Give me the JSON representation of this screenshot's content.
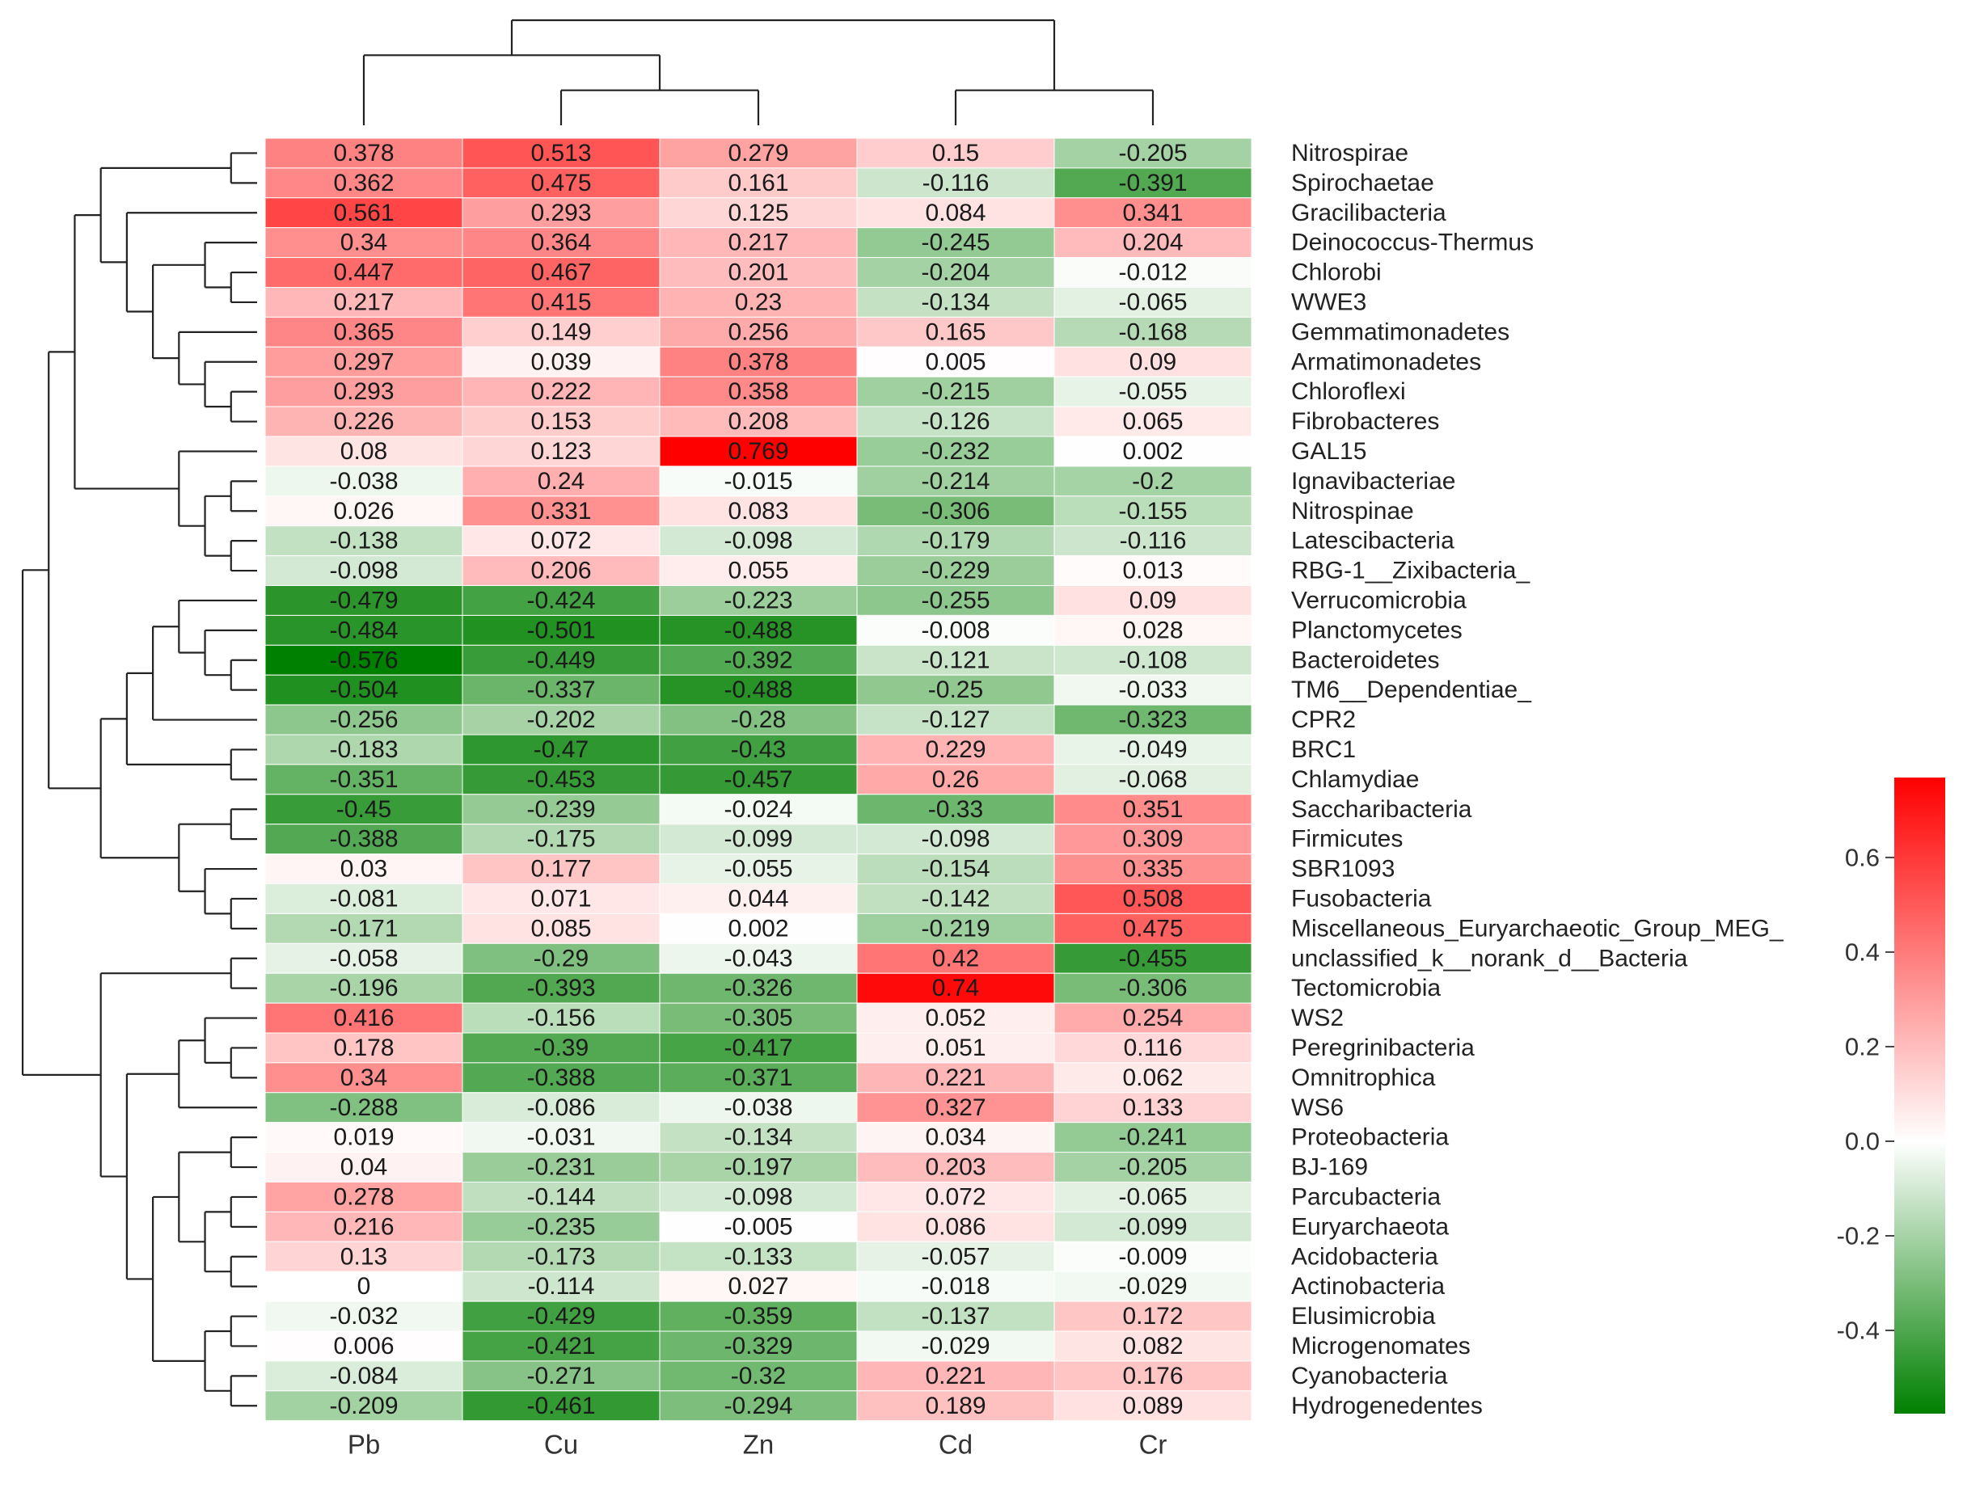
{
  "chart_data": {
    "type": "heatmap",
    "columns": [
      "Pb",
      "Cu",
      "Zn",
      "Cd",
      "Cr"
    ],
    "rows": [
      "Nitrospirae",
      "Spirochaetae",
      "Gracilibacteria",
      "Deinococcus-Thermus",
      "Chlorobi",
      "WWE3",
      "Gemmatimonadetes",
      "Armatimonadetes",
      "Chloroflexi",
      "Fibrobacteres",
      "GAL15",
      "Ignavibacteriae",
      "Nitrospinae",
      "Latescibacteria",
      "RBG-1__Zixibacteria_",
      "Verrucomicrobia",
      "Planctomycetes",
      "Bacteroidetes",
      "TM6__Dependentiae_",
      "CPR2",
      "BRC1",
      "Chlamydiae",
      "Saccharibacteria",
      "Firmicutes",
      "SBR1093",
      "Fusobacteria",
      "Miscellaneous_Euryarchaeotic_Group_MEG_",
      "unclassified_k__norank_d__Bacteria",
      "Tectomicrobia",
      "WS2",
      "Peregrinibacteria",
      "Omnitrophica",
      "WS6",
      "Proteobacteria",
      "BJ-169",
      "Parcubacteria",
      "Euryarchaeota",
      "Acidobacteria",
      "Actinobacteria",
      "Elusimicrobia",
      "Microgenomates",
      "Cyanobacteria",
      "Hydrogenedentes"
    ],
    "values": [
      [
        "0.378",
        "0.513",
        "0.279",
        "0.15",
        "-0.205"
      ],
      [
        "0.362",
        "0.475",
        "0.161",
        "-0.116",
        "-0.391"
      ],
      [
        "0.561",
        "0.293",
        "0.125",
        "0.084",
        "0.341"
      ],
      [
        "0.34",
        "0.364",
        "0.217",
        "-0.245",
        "0.204"
      ],
      [
        "0.447",
        "0.467",
        "0.201",
        "-0.204",
        "-0.012"
      ],
      [
        "0.217",
        "0.415",
        "0.23",
        "-0.134",
        "-0.065"
      ],
      [
        "0.365",
        "0.149",
        "0.256",
        "0.165",
        "-0.168"
      ],
      [
        "0.297",
        "0.039",
        "0.378",
        "0.005",
        "0.09"
      ],
      [
        "0.293",
        "0.222",
        "0.358",
        "-0.215",
        "-0.055"
      ],
      [
        "0.226",
        "0.153",
        "0.208",
        "-0.126",
        "0.065"
      ],
      [
        "0.08",
        "0.123",
        "0.769",
        "-0.232",
        "0.002"
      ],
      [
        "-0.038",
        "0.24",
        "-0.015",
        "-0.214",
        "-0.2"
      ],
      [
        "0.026",
        "0.331",
        "0.083",
        "-0.306",
        "-0.155"
      ],
      [
        "-0.138",
        "0.072",
        "-0.098",
        "-0.179",
        "-0.116"
      ],
      [
        "-0.098",
        "0.206",
        "0.055",
        "-0.229",
        "0.013"
      ],
      [
        "-0.479",
        "-0.424",
        "-0.223",
        "-0.255",
        "0.09"
      ],
      [
        "-0.484",
        "-0.501",
        "-0.488",
        "-0.008",
        "0.028"
      ],
      [
        "-0.576",
        "-0.449",
        "-0.392",
        "-0.121",
        "-0.108"
      ],
      [
        "-0.504",
        "-0.337",
        "-0.488",
        "-0.25",
        "-0.033"
      ],
      [
        "-0.256",
        "-0.202",
        "-0.28",
        "-0.127",
        "-0.323"
      ],
      [
        "-0.183",
        "-0.47",
        "-0.43",
        "0.229",
        "-0.049"
      ],
      [
        "-0.351",
        "-0.453",
        "-0.457",
        "0.26",
        "-0.068"
      ],
      [
        "-0.45",
        "-0.239",
        "-0.024",
        "-0.33",
        "0.351"
      ],
      [
        "-0.388",
        "-0.175",
        "-0.099",
        "-0.098",
        "0.309"
      ],
      [
        "0.03",
        "0.177",
        "-0.055",
        "-0.154",
        "0.335"
      ],
      [
        "-0.081",
        "0.071",
        "0.044",
        "-0.142",
        "0.508"
      ],
      [
        "-0.171",
        "0.085",
        "0.002",
        "-0.219",
        "0.475"
      ],
      [
        "-0.058",
        "-0.29",
        "-0.043",
        "0.42",
        "-0.455"
      ],
      [
        "-0.196",
        "-0.393",
        "-0.326",
        "0.74",
        "-0.306"
      ],
      [
        "0.416",
        "-0.156",
        "-0.305",
        "0.052",
        "0.254"
      ],
      [
        "0.178",
        "-0.39",
        "-0.417",
        "0.051",
        "0.116"
      ],
      [
        "0.34",
        "-0.388",
        "-0.371",
        "0.221",
        "0.062"
      ],
      [
        "-0.288",
        "-0.086",
        "-0.038",
        "0.327",
        "0.133"
      ],
      [
        "0.019",
        "-0.031",
        "-0.134",
        "0.034",
        "-0.241"
      ],
      [
        "0.04",
        "-0.231",
        "-0.197",
        "0.203",
        "-0.205"
      ],
      [
        "0.278",
        "-0.144",
        "-0.098",
        "0.072",
        "-0.065"
      ],
      [
        "0.216",
        "-0.235",
        "-0.005",
        "0.086",
        "-0.099"
      ],
      [
        "0.13",
        "-0.173",
        "-0.133",
        "-0.057",
        "-0.009"
      ],
      [
        "0",
        "-0.114",
        "0.027",
        "-0.018",
        "-0.029"
      ],
      [
        "-0.032",
        "-0.429",
        "-0.359",
        "-0.137",
        "0.172"
      ],
      [
        "0.006",
        "-0.421",
        "-0.329",
        "-0.029",
        "0.082"
      ],
      [
        "-0.084",
        "-0.271",
        "-0.32",
        "0.221",
        "0.176"
      ],
      [
        "-0.209",
        "-0.461",
        "-0.294",
        "0.189",
        "0.089"
      ]
    ],
    "color_scale": {
      "min": -0.576,
      "max": 0.769,
      "mid": 0,
      "low_color": "#008000",
      "mid_color": "#ffffff",
      "high_color": "#ff0000"
    },
    "colorbar_ticks": [
      "0.6",
      "0.4",
      "0.2",
      "0.0",
      "-0.2",
      "-0.4"
    ],
    "column_dendrogram": "((Pb,(Cu,Zn)),(Cd,Cr))",
    "row_dendrogram": "(((((Nitrospirae,Spirochaetae),(Gracilibacteria,((Deinococcus-Thermus,(Chlorobi,WWE3)),(Gemmatimonadetes,(Armatimonadetes,(Chloroflexi,Fibrobacteres)))))),(GAL15,((Ignavibacteriae,Nitrospinae),(Latescibacteria,RBG-1__Zixibacteria_)))),((((Verrucomicrobia,(Planctomycetes,(Bacteroidetes,TM6__Dependentiae_))),CPR2),(BRC1,Chlamydiae)),((Saccharibacteria,Firmicutes),(SBR1093,(Fusobacteria,Miscellaneous_Euryarchaeotic_Group_MEG_))))),((unclassified_k__norank_d__Bacteria,Tectomicrobia),(((WS2,(Peregrinibacteria,Omnitrophica)),WS6),(((Proteobacteria,BJ-169),((Parcubacteria,Euryarchaeota),(Acidobacteria,Actinobacteria))),((Elusimicrobia,Microgenomates),(Cyanobacteria,Hydrogenedentes))))))"
  }
}
